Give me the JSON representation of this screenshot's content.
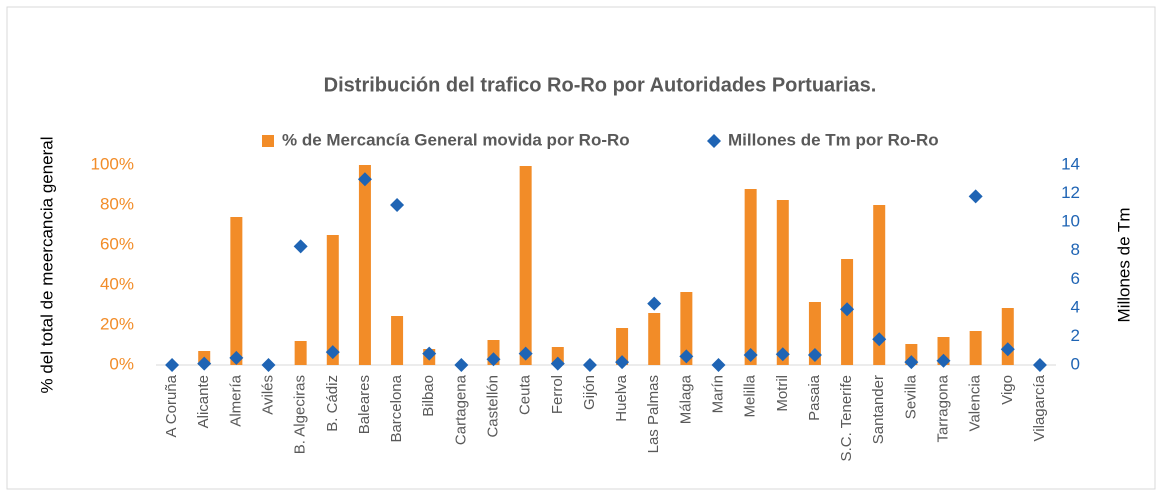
{
  "chart_data": {
    "type": "bar",
    "title": "Distribución del trafico Ro-Ro por Autoridades Portuarias.",
    "y_label": "% del total de meercancia general",
    "y2_label": "Millones de Tm",
    "legend_position": "top",
    "categories": [
      "A Coruña",
      "Alicante",
      "Almería",
      "Avilés",
      "B. Algeciras",
      "B. Cádiz",
      "Baleares",
      "Barcelona",
      "Bilbao",
      "Cartagena",
      "Castellón",
      "Ceuta",
      "Ferrol",
      "Gijón",
      "Huelva",
      "Las Palmas",
      "Málaga",
      "Marín",
      "Melilla",
      "Motril",
      "Pasaia",
      "S.C. Tenerife",
      "Santander",
      "Sevilla",
      "Tarragona",
      "Valencia",
      "Vigo",
      "Vilagarcía"
    ],
    "series": [
      {
        "name": "% de Mercancía General movida por Ro-Ro",
        "type": "bar",
        "color": "#F28C28",
        "values": [
          0,
          7,
          74,
          0,
          12,
          65,
          100,
          24.5,
          8,
          0,
          12.5,
          99.5,
          9,
          0,
          18.5,
          26,
          36.5,
          0,
          88,
          82.5,
          31.5,
          53,
          80,
          10.5,
          14,
          17,
          28.5,
          0
        ]
      },
      {
        "name": "Millones de Tm por Ro-Ro",
        "type": "scatter",
        "axis": "y2",
        "color": "#1F64B4",
        "values": [
          0,
          0.1,
          0.5,
          0,
          8.3,
          0.9,
          13,
          11.2,
          0.8,
          0,
          0.4,
          0.8,
          0.1,
          0,
          0.2,
          4.3,
          0.6,
          0,
          0.7,
          0.75,
          0.7,
          3.9,
          1.8,
          0.2,
          0.3,
          11.8,
          1.1,
          0
        ]
      }
    ],
    "ylim": [
      0,
      100
    ],
    "yticks": [
      {
        "value": 0,
        "label": "0%"
      },
      {
        "value": 20,
        "label": "20%"
      },
      {
        "value": 40,
        "label": "40%"
      },
      {
        "value": 60,
        "label": "60%"
      },
      {
        "value": 80,
        "label": "80%"
      },
      {
        "value": 100,
        "label": "100%"
      }
    ],
    "y2lim": [
      0,
      14
    ],
    "y2ticks": [
      0,
      2,
      4,
      6,
      8,
      10,
      12,
      14
    ],
    "grid": false
  }
}
